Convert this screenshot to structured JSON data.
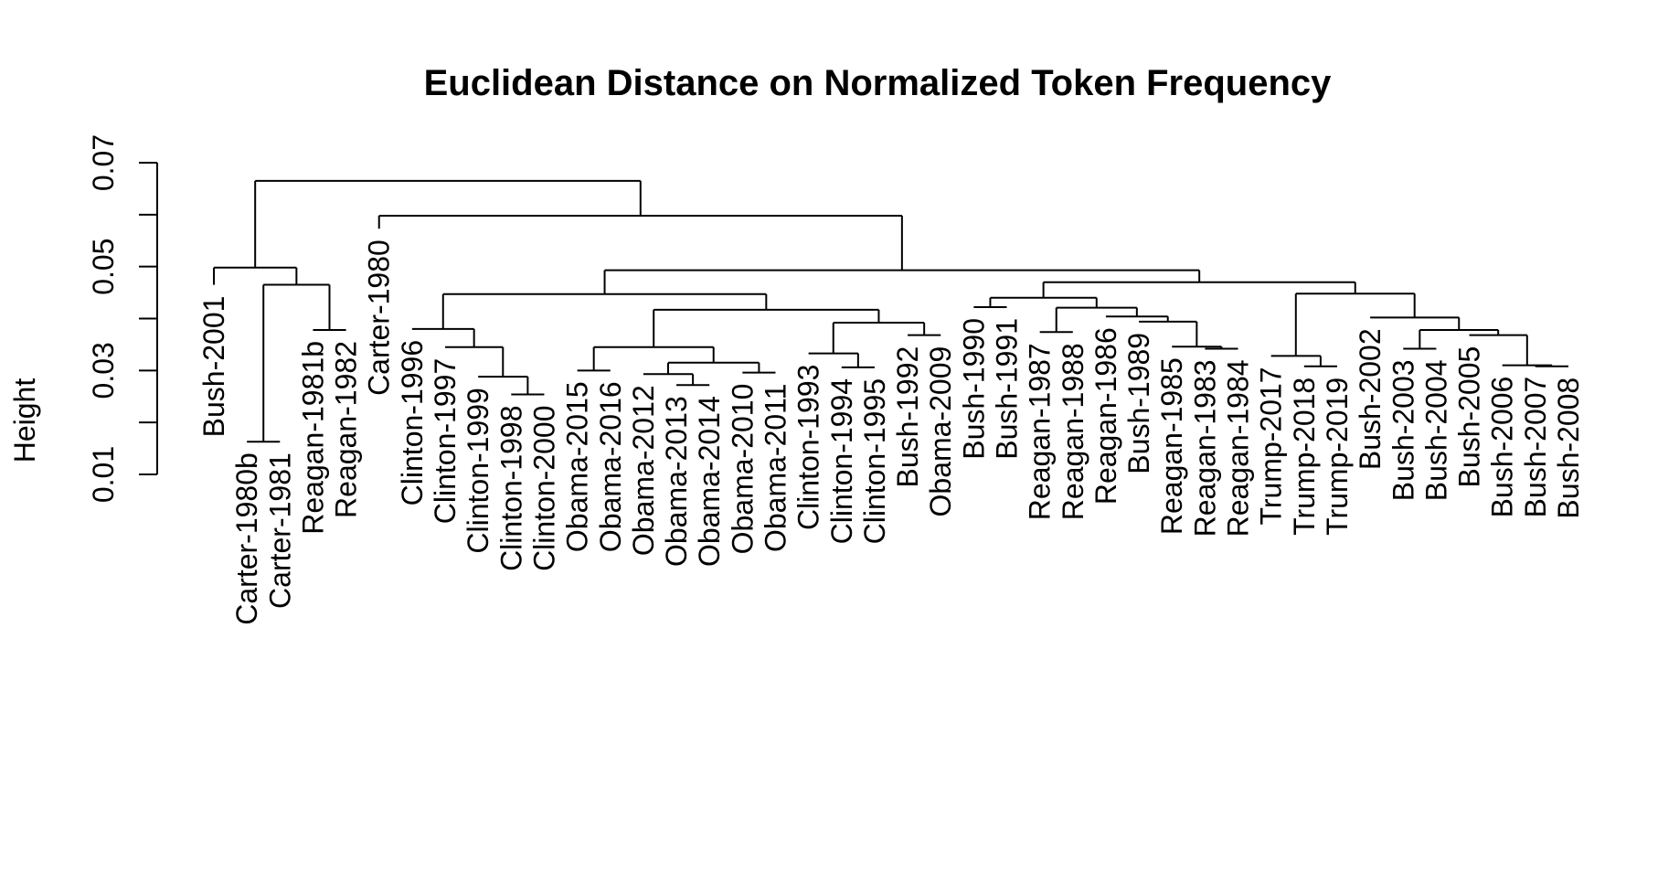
{
  "chart_data": {
    "type": "dendrogram",
    "title": "Euclidean Distance on Normalized Token Frequency",
    "xlabel": "",
    "ylabel": "Height",
    "ylim": [
      0.01,
      0.07
    ],
    "yticks": [
      "0.01",
      "0.03",
      "0.05",
      "0.07"
    ],
    "ytick_values": [
      0.01,
      0.03,
      0.05,
      0.07
    ],
    "grid": false,
    "line_color": "#000000",
    "leaves": [
      "Bush-2001",
      "Carter-1980b",
      "Carter-1981",
      "Reagan-1981b",
      "Reagan-1982",
      "Carter-1980",
      "Clinton-1996",
      "Clinton-1997",
      "Clinton-1999",
      "Clinton-1998",
      "Clinton-2000",
      "Obama-2015",
      "Obama-2016",
      "Obama-2012",
      "Obama-2013",
      "Obama-2014",
      "Obama-2010",
      "Obama-2011",
      "Clinton-1993",
      "Clinton-1994",
      "Clinton-1995",
      "Bush-1992",
      "Obama-2009",
      "Bush-1990",
      "Bush-1991",
      "Reagan-1987",
      "Reagan-1988",
      "Reagan-1986",
      "Bush-1989",
      "Reagan-1985",
      "Reagan-1983",
      "Reagan-1984",
      "Trump-2017",
      "Trump-2018",
      "Trump-2019",
      "Bush-2002",
      "Bush-2003",
      "Bush-2004",
      "Bush-2005",
      "Bush-2006",
      "Bush-2007",
      "Bush-2008"
    ],
    "leaf_heights": [
      0.0465,
      0.0163,
      0.0163,
      0.0378,
      0.0378,
      0.0573,
      0.038,
      0.0345,
      0.0288,
      0.0254,
      0.0254,
      0.03,
      0.03,
      0.0293,
      0.0272,
      0.0272,
      0.0296,
      0.0296,
      0.0333,
      0.0306,
      0.0306,
      0.0368,
      0.0368,
      0.0422,
      0.0422,
      0.0374,
      0.0374,
      0.0404,
      0.0394,
      0.0346,
      0.0342,
      0.0342,
      0.0328,
      0.0308,
      0.0308,
      0.0402,
      0.0342,
      0.0342,
      0.0368,
      0.031,
      0.031,
      0.0308
    ],
    "merges": [
      {
        "left": 1,
        "right": 2,
        "height": 0.0163
      },
      {
        "left": 3,
        "right": 4,
        "height": 0.0378
      },
      {
        "left": -1,
        "right": -2,
        "height": 0.0465
      },
      {
        "left": 0,
        "right": -3,
        "height": 0.0498
      },
      {
        "left": 9,
        "right": 10,
        "height": 0.0254
      },
      {
        "left": 8,
        "right": -5,
        "height": 0.0288
      },
      {
        "left": 7,
        "right": -6,
        "height": 0.0345
      },
      {
        "left": 6,
        "right": -7,
        "height": 0.038
      },
      {
        "left": 11,
        "right": 12,
        "height": 0.03
      },
      {
        "left": 14,
        "right": 15,
        "height": 0.0272
      },
      {
        "left": 13,
        "right": -10,
        "height": 0.0293
      },
      {
        "left": 16,
        "right": 17,
        "height": 0.0296
      },
      {
        "left": -11,
        "right": -12,
        "height": 0.0315
      },
      {
        "left": -9,
        "right": -13,
        "height": 0.0345
      },
      {
        "left": 19,
        "right": 20,
        "height": 0.0306
      },
      {
        "left": 18,
        "right": -15,
        "height": 0.0333
      },
      {
        "left": 21,
        "right": 22,
        "height": 0.0368
      },
      {
        "left": -16,
        "right": -17,
        "height": 0.0392
      },
      {
        "left": -14,
        "right": -18,
        "height": 0.0417
      },
      {
        "left": -8,
        "right": -19,
        "height": 0.0447
      },
      {
        "left": 23,
        "right": 24,
        "height": 0.0422
      },
      {
        "left": 25,
        "right": 26,
        "height": 0.0374
      },
      {
        "left": 30,
        "right": 31,
        "height": 0.0342
      },
      {
        "left": 29,
        "right": -23,
        "height": 0.0346
      },
      {
        "left": 28,
        "right": -24,
        "height": 0.0394
      },
      {
        "left": 27,
        "right": -25,
        "height": 0.0404
      },
      {
        "left": -22,
        "right": -26,
        "height": 0.0421
      },
      {
        "left": -21,
        "right": -27,
        "height": 0.044
      },
      {
        "left": 33,
        "right": 34,
        "height": 0.0308
      },
      {
        "left": 32,
        "right": -29,
        "height": 0.0328
      },
      {
        "left": 36,
        "right": 37,
        "height": 0.0342
      },
      {
        "left": 40,
        "right": 41,
        "height": 0.0308
      },
      {
        "left": 39,
        "right": -32,
        "height": 0.031
      },
      {
        "left": 38,
        "right": -33,
        "height": 0.0368
      },
      {
        "left": -31,
        "right": -34,
        "height": 0.0378
      },
      {
        "left": 35,
        "right": -35,
        "height": 0.0402
      },
      {
        "left": -30,
        "right": -36,
        "height": 0.0448
      },
      {
        "left": -28,
        "right": -37,
        "height": 0.047
      },
      {
        "left": -20,
        "right": -38,
        "height": 0.0493
      },
      {
        "left": 5,
        "right": -39,
        "height": 0.0598
      },
      {
        "left": -4,
        "right": -40,
        "height": 0.0665
      }
    ]
  }
}
